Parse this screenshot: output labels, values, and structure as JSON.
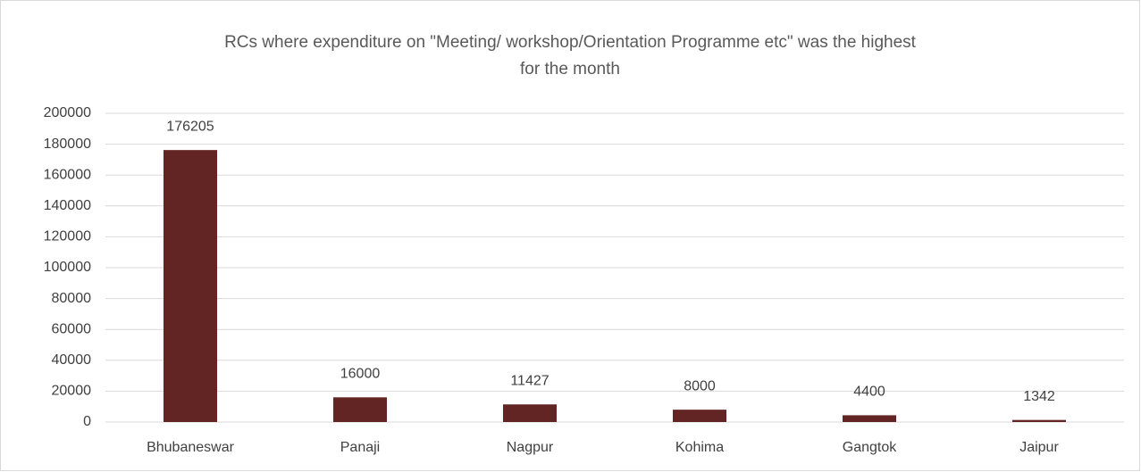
{
  "chart_data": {
    "type": "bar",
    "title": "RCs where expenditure on \"Meeting/ workshop/Orientation Programme etc\" was the highest for the month",
    "categories": [
      "Bhubaneswar",
      "Panaji",
      "Nagpur",
      "Kohima",
      "Gangtok",
      "Jaipur"
    ],
    "values": [
      176205,
      16000,
      11427,
      8000,
      4400,
      1342
    ],
    "color": "#632523",
    "ylim": [
      0,
      200000
    ],
    "yticks": [
      0,
      20000,
      40000,
      60000,
      80000,
      100000,
      120000,
      140000,
      160000,
      180000,
      200000
    ],
    "grid": true
  }
}
